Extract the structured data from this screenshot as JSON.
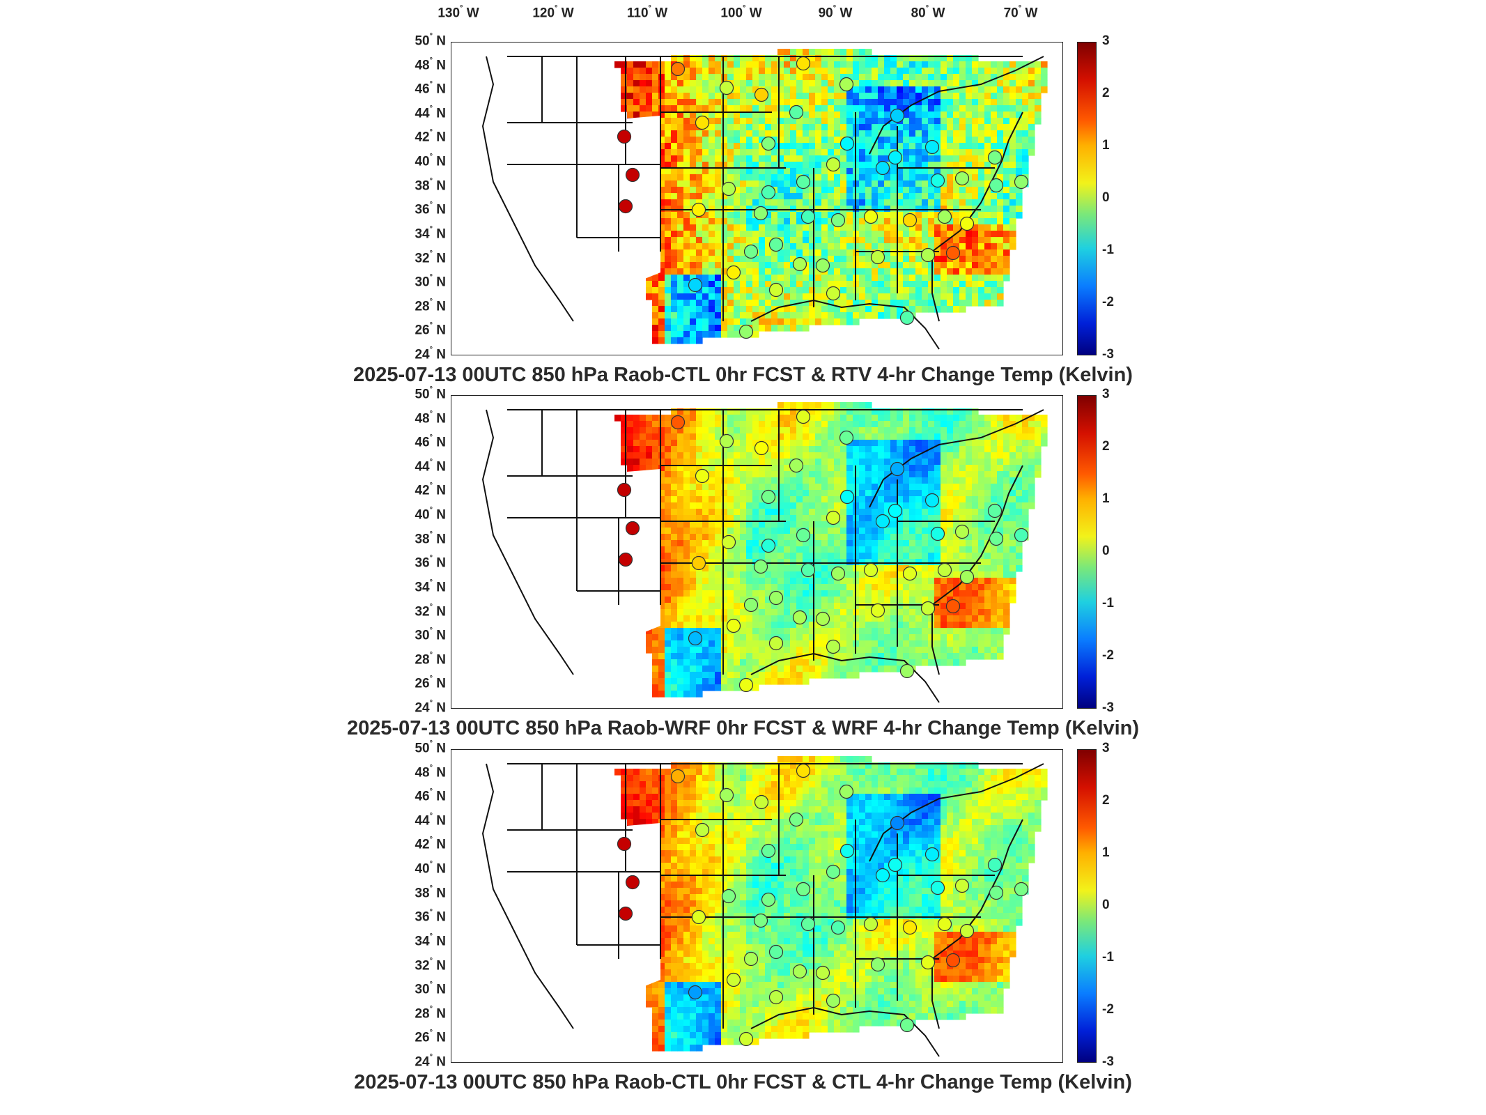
{
  "longitude_labels": [
    "130",
    "120",
    "110",
    "100",
    "90",
    "80",
    "70"
  ],
  "longitude_suffix": "W",
  "latitude_labels": [
    "50",
    "48",
    "46",
    "44",
    "42",
    "40",
    "38",
    "36",
    "34",
    "32",
    "30",
    "28",
    "26",
    "24"
  ],
  "latitude_suffix": "N",
  "colorbar_ticks": [
    "3",
    "2",
    "1",
    "0",
    "-1",
    "-2",
    "-3"
  ],
  "colorbar_range": [
    -3,
    3
  ],
  "colorscale": "jet",
  "panels": [
    {
      "title": "2025-07-13 00UTC 850 hPa Raob-CTL 0hr FCST & RTV 4-hr Change Temp (Kelvin)"
    },
    {
      "title": "2025-07-13 00UTC 850 hPa Raob-WRF 0hr FCST & WRF 4-hr Change Temp (Kelvin)"
    },
    {
      "title": "2025-07-13 00UTC 850 hPa Raob-CTL 0hr FCST & CTL 4-hr Change Temp (Kelvin)"
    }
  ]
}
